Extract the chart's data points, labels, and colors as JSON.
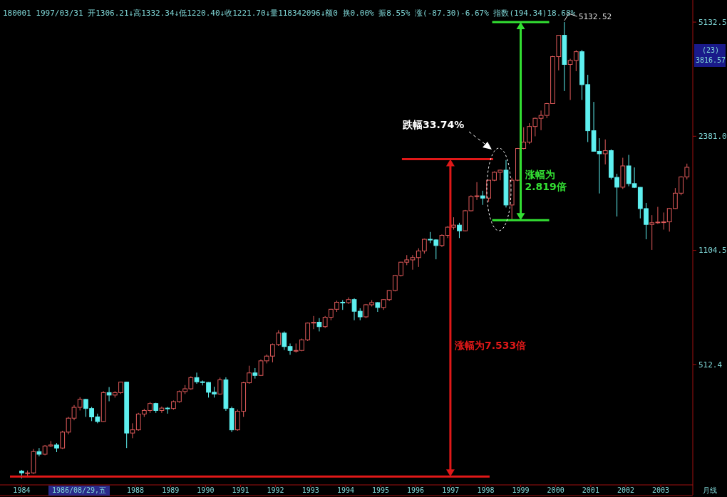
{
  "chart_data": {
    "type": "candlestick",
    "subtitle": "180001 1997/03/31 开1306.21↓高1332.34↓低1220.40↓收1221.70↓量118342096↓额0 换0.00% 振8.55% 涨(-87.30)-6.67% 指数(194.34)18.68%",
    "x": [
      "1984-10",
      "1984-12",
      "1985-02",
      "1985-04",
      "1985-06",
      "1985-08",
      "1985-10",
      "1985-12",
      "1986-02",
      "1986-04",
      "1986-06",
      "1986-08",
      "1986-10",
      "1986-12",
      "1987-02",
      "1987-04",
      "1987-06",
      "1987-08",
      "1987-10",
      "1987-12",
      "1988-02",
      "1988-04",
      "1988-06",
      "1988-08",
      "1988-10",
      "1988-12",
      "1989-02",
      "1989-04",
      "1989-06",
      "1989-08",
      "1989-10",
      "1989-12",
      "1990-02",
      "1990-04",
      "1990-06",
      "1990-08",
      "1990-10",
      "1990-12",
      "1991-02",
      "1991-04",
      "1991-06",
      "1991-08",
      "1991-10",
      "1991-12",
      "1992-02",
      "1992-04",
      "1992-06",
      "1992-08",
      "1992-10",
      "1992-12",
      "1993-02",
      "1993-04",
      "1993-06",
      "1993-08",
      "1993-10",
      "1993-12",
      "1994-02",
      "1994-04",
      "1994-06",
      "1994-08",
      "1994-10",
      "1994-12",
      "1995-02",
      "1995-04",
      "1995-06",
      "1995-08",
      "1995-10",
      "1995-12",
      "1996-02",
      "1996-04",
      "1996-06",
      "1996-08",
      "1996-10",
      "1996-12",
      "1997-02",
      "1997-04",
      "1997-06",
      "1997-08",
      "1997-10",
      "1997-12",
      "1998-02",
      "1998-04",
      "1998-06",
      "1998-08",
      "1998-10",
      "1998-12",
      "1999-02",
      "1999-04",
      "1999-06",
      "1999-08",
      "1999-10",
      "1999-12",
      "2000-02",
      "2000-04",
      "2000-06",
      "2000-08",
      "2000-10",
      "2000-12",
      "2001-02",
      "2001-04",
      "2001-06",
      "2001-08",
      "2001-10",
      "2001-12",
      "2002-02",
      "2002-04",
      "2002-06",
      "2002-08",
      "2002-10",
      "2002-12",
      "2003-02",
      "2003-04",
      "2003-06",
      "2003-08",
      "2003-10"
    ],
    "ohlc": [
      [
        250,
        252,
        238,
        247
      ],
      [
        247,
        251,
        240,
        247
      ],
      [
        247,
        290,
        245,
        285
      ],
      [
        285,
        292,
        276,
        280
      ],
      [
        280,
        298,
        278,
        296
      ],
      [
        296,
        306,
        294,
        298
      ],
      [
        298,
        302,
        284,
        292
      ],
      [
        292,
        328,
        290,
        325
      ],
      [
        325,
        360,
        320,
        357
      ],
      [
        357,
        390,
        352,
        384
      ],
      [
        384,
        411,
        376,
        405
      ],
      [
        405,
        406,
        360,
        381
      ],
      [
        381,
        385,
        350,
        360
      ],
      [
        360,
        368,
        345,
        349
      ],
      [
        349,
        428,
        348,
        424
      ],
      [
        424,
        440,
        400,
        417
      ],
      [
        417,
        428,
        410,
        424
      ],
      [
        424,
        456,
        420,
        455
      ],
      [
        455,
        456,
        292,
        323
      ],
      [
        323,
        345,
        312,
        330
      ],
      [
        330,
        370,
        328,
        367
      ],
      [
        367,
        380,
        360,
        376
      ],
      [
        376,
        398,
        370,
        394
      ],
      [
        394,
        396,
        370,
        376
      ],
      [
        376,
        386,
        370,
        382
      ],
      [
        382,
        385,
        368,
        381
      ],
      [
        381,
        402,
        378,
        399
      ],
      [
        399,
        430,
        396,
        427
      ],
      [
        427,
        446,
        420,
        435
      ],
      [
        435,
        473,
        432,
        469
      ],
      [
        469,
        485,
        450,
        456
      ],
      [
        456,
        460,
        445,
        454
      ],
      [
        454,
        455,
        410,
        425
      ],
      [
        425,
        441,
        410,
        420
      ],
      [
        420,
        469,
        418,
        462
      ],
      [
        462,
        470,
        375,
        381
      ],
      [
        381,
        386,
        325,
        330
      ],
      [
        330,
        378,
        328,
        374
      ],
      [
        374,
        456,
        360,
        453
      ],
      [
        453,
        508,
        450,
        484
      ],
      [
        484,
        500,
        466,
        476
      ],
      [
        476,
        530,
        474,
        525
      ],
      [
        525,
        548,
        516,
        542
      ],
      [
        542,
        590,
        520,
        586
      ],
      [
        586,
        645,
        580,
        633
      ],
      [
        633,
        640,
        565,
        578
      ],
      [
        578,
        590,
        547,
        563
      ],
      [
        563,
        590,
        555,
        563
      ],
      [
        563,
        610,
        560,
        605
      ],
      [
        605,
        680,
        600,
        677
      ],
      [
        677,
        710,
        650,
        681
      ],
      [
        681,
        700,
        640,
        661
      ],
      [
        661,
        710,
        655,
        704
      ],
      [
        704,
        745,
        690,
        743
      ],
      [
        743,
        787,
        730,
        779
      ],
      [
        779,
        790,
        740,
        777
      ],
      [
        777,
        805,
        770,
        793
      ],
      [
        793,
        800,
        690,
        733
      ],
      [
        733,
        748,
        690,
        706
      ],
      [
        706,
        770,
        700,
        766
      ],
      [
        766,
        790,
        757,
        777
      ],
      [
        777,
        780,
        730,
        752
      ],
      [
        752,
        795,
        740,
        793
      ],
      [
        793,
        846,
        785,
        843
      ],
      [
        843,
        937,
        838,
        933
      ],
      [
        933,
        1022,
        926,
        1020
      ],
      [
        1020,
        1070,
        1000,
        1036
      ],
      [
        1036,
        1070,
        970,
        1052
      ],
      [
        1052,
        1120,
        988,
        1100
      ],
      [
        1100,
        1195,
        1080,
        1190
      ],
      [
        1190,
        1250,
        1160,
        1185
      ],
      [
        1185,
        1190,
        1040,
        1141
      ],
      [
        1141,
        1230,
        1130,
        1222
      ],
      [
        1222,
        1300,
        1200,
        1291
      ],
      [
        1291,
        1380,
        1270,
        1309
      ],
      [
        1309,
        1330,
        1200,
        1260
      ],
      [
        1260,
        1450,
        1255,
        1442
      ],
      [
        1442,
        1600,
        1435,
        1587
      ],
      [
        1587,
        1748,
        1550,
        1594
      ],
      [
        1594,
        1650,
        1500,
        1570
      ],
      [
        1570,
        1775,
        1530,
        1771
      ],
      [
        1771,
        1880,
        1760,
        1868
      ],
      [
        1868,
        1900,
        1770,
        1895
      ],
      [
        1895,
        2028,
        1474,
        1499
      ],
      [
        1499,
        1800,
        1357,
        1771
      ],
      [
        1771,
        2200,
        1760,
        2193
      ],
      [
        2193,
        2530,
        2180,
        2288
      ],
      [
        2288,
        2600,
        2260,
        2542
      ],
      [
        2542,
        2700,
        2380,
        2686
      ],
      [
        2686,
        2830,
        2480,
        2739
      ],
      [
        2739,
        2980,
        2690,
        2966
      ],
      [
        2966,
        4090,
        2960,
        4069
      ],
      [
        4069,
        4700,
        3710,
        4696
      ],
      [
        4696,
        5132.52,
        3227,
        3861
      ],
      [
        3861,
        4010,
        3040,
        3966
      ],
      [
        3966,
        4250,
        3690,
        4206
      ],
      [
        4206,
        4260,
        3040,
        3370
      ],
      [
        3370,
        3600,
        2290,
        2471
      ],
      [
        2471,
        3000,
        2150,
        2152
      ],
      [
        2152,
        2350,
        1620,
        2116
      ],
      [
        2116,
        2330,
        1970,
        2161
      ],
      [
        2161,
        2180,
        1780,
        1805
      ],
      [
        1805,
        1850,
        1387,
        1690
      ],
      [
        1690,
        2060,
        1670,
        1950
      ],
      [
        1950,
        2100,
        1700,
        1731
      ],
      [
        1731,
        1930,
        1680,
        1688
      ],
      [
        1688,
        1690,
        1370,
        1463
      ],
      [
        1463,
        1520,
        1190,
        1315
      ],
      [
        1315,
        1400,
        1108,
        1330
      ],
      [
        1330,
        1480,
        1320,
        1336
      ],
      [
        1336,
        1425,
        1270,
        1338
      ],
      [
        1338,
        1470,
        1253,
        1464
      ],
      [
        1464,
        1680,
        1460,
        1623
      ],
      [
        1623,
        1820,
        1600,
        1810
      ],
      [
        1810,
        1980,
        1780,
        1932
      ]
    ],
    "log": true,
    "ylim": [
      230,
      5900
    ],
    "yticks": [
      512.4,
      1104.5,
      {
        "value": 2381,
        "label": "2381.0"
      },
      5132.5
    ],
    "xlim": [
      "1984-06-01",
      "2003-12-01"
    ],
    "xticks": [
      {
        "value": "1984-10-01",
        "label": "1984"
      },
      {
        "value": "1988-01-01",
        "label": "1988"
      },
      {
        "value": "1989-01-01",
        "label": "1989"
      },
      {
        "value": "1990-01-01",
        "label": "1990"
      },
      {
        "value": "1991-01-01",
        "label": "1991"
      },
      {
        "value": "1992-01-01",
        "label": "1992"
      },
      {
        "value": "1993-01-01",
        "label": "1993"
      },
      {
        "value": "1994-01-01",
        "label": "1994"
      },
      {
        "value": "1995-01-01",
        "label": "1995"
      },
      {
        "value": "1996-01-01",
        "label": "1996"
      },
      {
        "value": "1997-01-01",
        "label": "1997"
      },
      {
        "value": "1998-01-01",
        "label": "1998"
      },
      {
        "value": "1999-01-01",
        "label": "1999"
      },
      {
        "value": "2000-01-01",
        "label": "2000"
      },
      {
        "value": "2001-01-01",
        "label": "2001"
      },
      {
        "value": "2002-01-01",
        "label": "2002"
      },
      {
        "value": "2003-01-01",
        "label": "2003"
      }
    ],
    "ref_lines": [
      {
        "axis": "y",
        "value": 241,
        "color": "#e01818"
      },
      {
        "axis": "y",
        "value": 2042,
        "color": "#e01818"
      },
      {
        "axis": "y",
        "value": 1353,
        "color": "#33e033"
      },
      {
        "axis": "y",
        "value": 5132.52,
        "color": "#33e033"
      }
    ],
    "annotations": [
      "涨幅为7.533倍",
      {
        "text": "涨幅为\n2.819倍",
        "x": "1999-01",
        "y": 1800
      },
      "跌幅33.74%",
      {
        "text": "5132.52",
        "x": "2000-04",
        "y": 5132.52
      },
      "(23)\n3816.57",
      "1986/08/29,五",
      "月线"
    ]
  }
}
